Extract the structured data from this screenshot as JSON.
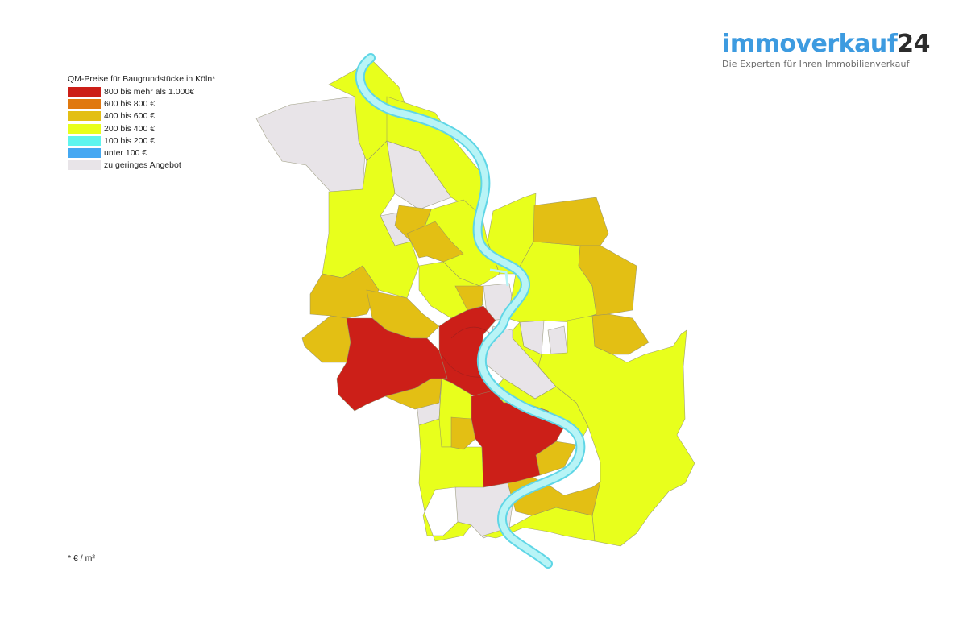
{
  "logo": {
    "brand": "immoverkauf",
    "brand_number": "24",
    "tagline": "Die Experten für Ihren Immobilienverkauf"
  },
  "legend": {
    "title": "QM-Preise für Baugrundstücke in Köln*",
    "items": [
      {
        "label": "800 bis mehr als 1.000€",
        "color": "#cc1f18"
      },
      {
        "label": "600 bis 800 €",
        "color": "#e0780f"
      },
      {
        "label": "400 bis 600 €",
        "color": "#e3bf14"
      },
      {
        "label": "200 bis 400 €",
        "color": "#e8ff1c"
      },
      {
        "label": "100 bis 200 €",
        "color": "#5ff5ee"
      },
      {
        "label": "unter 100 €",
        "color": "#45a8f2"
      },
      {
        "label": "zu geringes Angebot",
        "color": "#e8e4e8"
      }
    ]
  },
  "footnote": "* € / m²",
  "map": {
    "city": "Köln",
    "river_color": "#b8f4f6",
    "river_edge_color": "#5fd6e6"
  }
}
